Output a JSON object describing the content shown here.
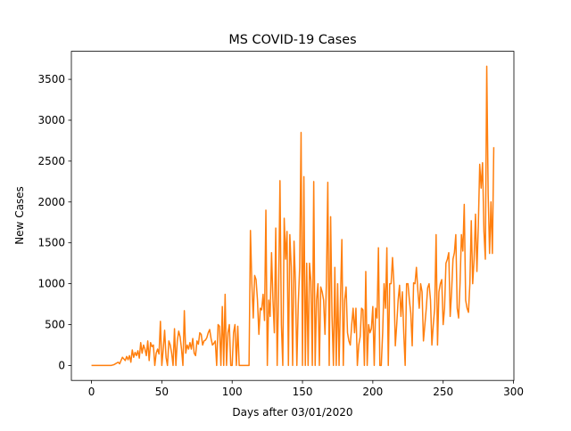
{
  "chart_data": {
    "type": "line",
    "title": "MS COVID-19 Cases",
    "x_label": "Days after 03/01/2020",
    "y_label": "New Cases",
    "color": "#ff7f0e",
    "x": [
      0,
      1,
      2,
      3,
      4,
      5,
      6,
      7,
      8,
      9,
      10,
      11,
      12,
      13,
      14,
      15,
      16,
      17,
      18,
      19,
      20,
      21,
      22,
      23,
      24,
      25,
      26,
      27,
      28,
      29,
      30,
      31,
      32,
      33,
      34,
      35,
      36,
      37,
      38,
      39,
      40,
      41,
      42,
      43,
      44,
      45,
      46,
      47,
      48,
      49,
      50,
      51,
      52,
      53,
      54,
      55,
      56,
      57,
      58,
      59,
      60,
      61,
      62,
      63,
      64,
      65,
      66,
      67,
      68,
      69,
      70,
      71,
      72,
      73,
      74,
      75,
      76,
      77,
      78,
      79,
      80,
      81,
      82,
      83,
      84,
      85,
      86,
      87,
      88,
      89,
      90,
      91,
      92,
      93,
      94,
      95,
      96,
      97,
      98,
      99,
      100,
      101,
      102,
      103,
      104,
      105,
      106,
      107,
      108,
      109,
      110,
      111,
      112,
      113,
      114,
      115,
      116,
      117,
      118,
      119,
      120,
      121,
      122,
      123,
      124,
      125,
      126,
      127,
      128,
      129,
      130,
      131,
      132,
      133,
      134,
      135,
      136,
      137,
      138,
      139,
      140,
      141,
      142,
      143,
      144,
      145,
      146,
      147,
      148,
      149,
      150,
      151,
      152,
      153,
      154,
      155,
      156,
      157,
      158,
      159,
      160,
      161,
      162,
      163,
      164,
      165,
      166,
      167,
      168,
      169,
      170,
      171,
      172,
      173,
      174,
      175,
      176,
      177,
      178,
      179,
      180,
      181,
      182,
      183,
      184,
      185,
      186,
      187,
      188,
      189,
      190,
      191,
      192,
      193,
      194,
      195,
      196,
      197,
      198,
      199,
      200,
      201,
      202,
      203,
      204,
      205,
      206,
      207,
      208,
      209,
      210,
      211,
      212,
      213,
      214,
      215,
      216,
      217,
      218,
      219,
      220,
      221,
      222,
      223,
      224,
      225,
      226,
      227,
      228,
      229,
      230,
      231,
      232,
      233,
      234,
      235,
      236,
      237,
      238,
      239,
      240,
      241,
      242,
      243,
      244,
      245,
      246,
      247,
      248,
      249,
      250,
      251,
      252,
      253,
      254,
      255,
      256,
      257,
      258,
      259,
      260,
      261,
      262,
      263,
      264,
      265,
      266,
      267,
      268,
      269,
      270,
      271,
      272,
      273,
      274,
      275,
      276,
      277,
      278,
      279,
      280,
      281,
      282,
      283,
      284,
      285,
      286
    ],
    "values": [
      0,
      0,
      0,
      0,
      0,
      0,
      0,
      0,
      0,
      0,
      0,
      0,
      0,
      0,
      0,
      5,
      10,
      20,
      30,
      40,
      20,
      60,
      100,
      80,
      60,
      110,
      70,
      120,
      40,
      190,
      100,
      160,
      120,
      180,
      90,
      280,
      150,
      250,
      200,
      120,
      300,
      60,
      280,
      230,
      250,
      0,
      150,
      200,
      140,
      540,
      0,
      200,
      430,
      100,
      0,
      300,
      250,
      150,
      0,
      450,
      0,
      300,
      420,
      350,
      200,
      0,
      670,
      150,
      250,
      200,
      280,
      200,
      330,
      150,
      120,
      300,
      260,
      400,
      380,
      250,
      300,
      310,
      340,
      400,
      440,
      330,
      250,
      270,
      300,
      0,
      500,
      480,
      0,
      720,
      0,
      870,
      0,
      400,
      500,
      0,
      0,
      400,
      500,
      0,
      480,
      0,
      0,
      0,
      0,
      0,
      0,
      0,
      0,
      1650,
      1000,
      580,
      1100,
      1050,
      800,
      380,
      700,
      680,
      870,
      550,
      1900,
      0,
      800,
      600,
      1380,
      800,
      400,
      1680,
      0,
      860,
      2260,
      500,
      0,
      1800,
      1300,
      1640,
      0,
      1600,
      1200,
      0,
      1520,
      1000,
      0,
      750,
      1200,
      2850,
      0,
      2310,
      0,
      1250,
      0,
      1250,
      1030,
      0,
      2250,
      0,
      800,
      1000,
      0,
      960,
      900,
      800,
      380,
      1000,
      2240,
      0,
      1820,
      600,
      0,
      1200,
      0,
      1000,
      0,
      800,
      1540,
      0,
      800,
      960,
      400,
      300,
      250,
      500,
      700,
      400,
      700,
      0,
      250,
      350,
      700,
      680,
      0,
      1150,
      0,
      500,
      400,
      450,
      720,
      0,
      700,
      580,
      1440,
      0,
      0,
      400,
      1000,
      700,
      1440,
      0,
      1000,
      1000,
      1320,
      1000,
      240,
      500,
      800,
      980,
      600,
      900,
      400,
      0,
      1000,
      1000,
      800,
      640,
      240,
      1010,
      1000,
      1200,
      920,
      700,
      1000,
      900,
      300,
      500,
      700,
      950,
      1000,
      800,
      250,
      500,
      700,
      1600,
      250,
      900,
      1000,
      1050,
      500,
      700,
      1250,
      1300,
      1380,
      600,
      900,
      1300,
      1380,
      1600,
      700,
      580,
      1000,
      1600,
      1400,
      1970,
      800,
      700,
      650,
      1000,
      1770,
      1000,
      1300,
      1850,
      1150,
      1700,
      2460,
      2170,
      2480,
      1640,
      1300,
      3660,
      2100,
      1370,
      2000,
      1370,
      2670
    ],
    "xlim": [
      -14.3,
      300.3
    ],
    "ylim": [
      -183,
      3843
    ],
    "xticks": [
      0,
      50,
      100,
      150,
      200,
      250,
      300
    ],
    "yticks": [
      0,
      500,
      1000,
      1500,
      2000,
      2500,
      3000,
      3500
    ]
  }
}
